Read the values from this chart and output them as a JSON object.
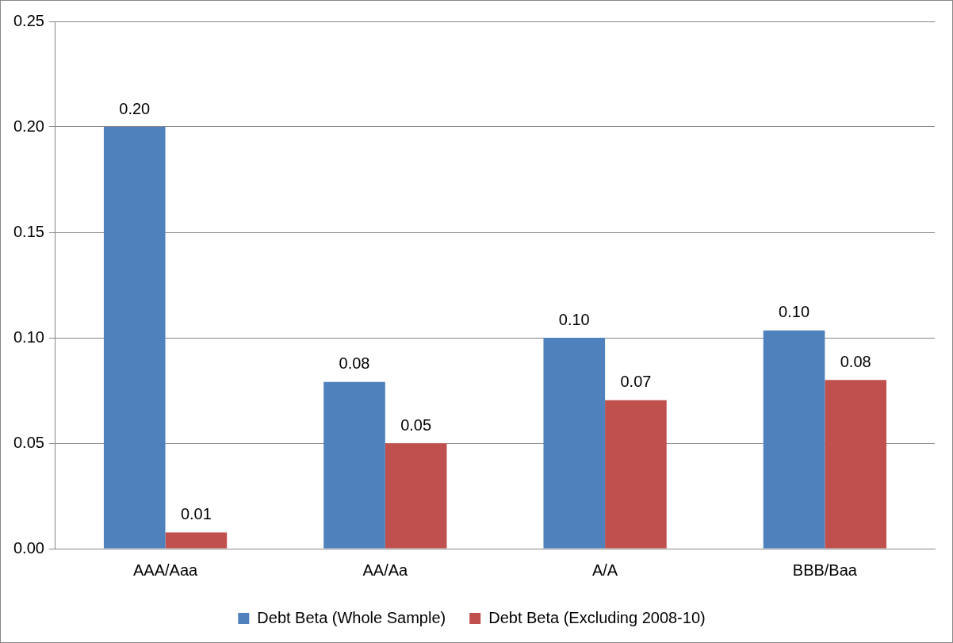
{
  "chart_data": {
    "type": "bar",
    "categories": [
      "AAA/Aaa",
      "AA/Aa",
      "A/A",
      "BBB/Baa"
    ],
    "series": [
      {
        "name": "Debt Beta (Whole Sample)",
        "color": "#4f81bd",
        "values": [
          0.2,
          0.079,
          0.1,
          0.1035
        ],
        "value_labels": [
          "0.20",
          "0.08",
          "0.10",
          "0.10"
        ]
      },
      {
        "name": "Debt Beta (Excluding 2008-10)",
        "color": "#c0504d",
        "values": [
          0.0077,
          0.05,
          0.0704,
          0.08
        ],
        "value_labels": [
          "0.01",
          "0.05",
          "0.07",
          "0.08"
        ]
      }
    ],
    "ylim": [
      0,
      0.25
    ],
    "yticks": [
      {
        "value": 0,
        "label": "0.00"
      },
      {
        "value": 0.05,
        "label": "0.05"
      },
      {
        "value": 0.1,
        "label": "0.10"
      },
      {
        "value": 0.15,
        "label": "0.15"
      },
      {
        "value": 0.2,
        "label": "0.20"
      },
      {
        "value": 0.25,
        "label": "0.25"
      }
    ],
    "grid": "y",
    "legend": "bottom"
  }
}
